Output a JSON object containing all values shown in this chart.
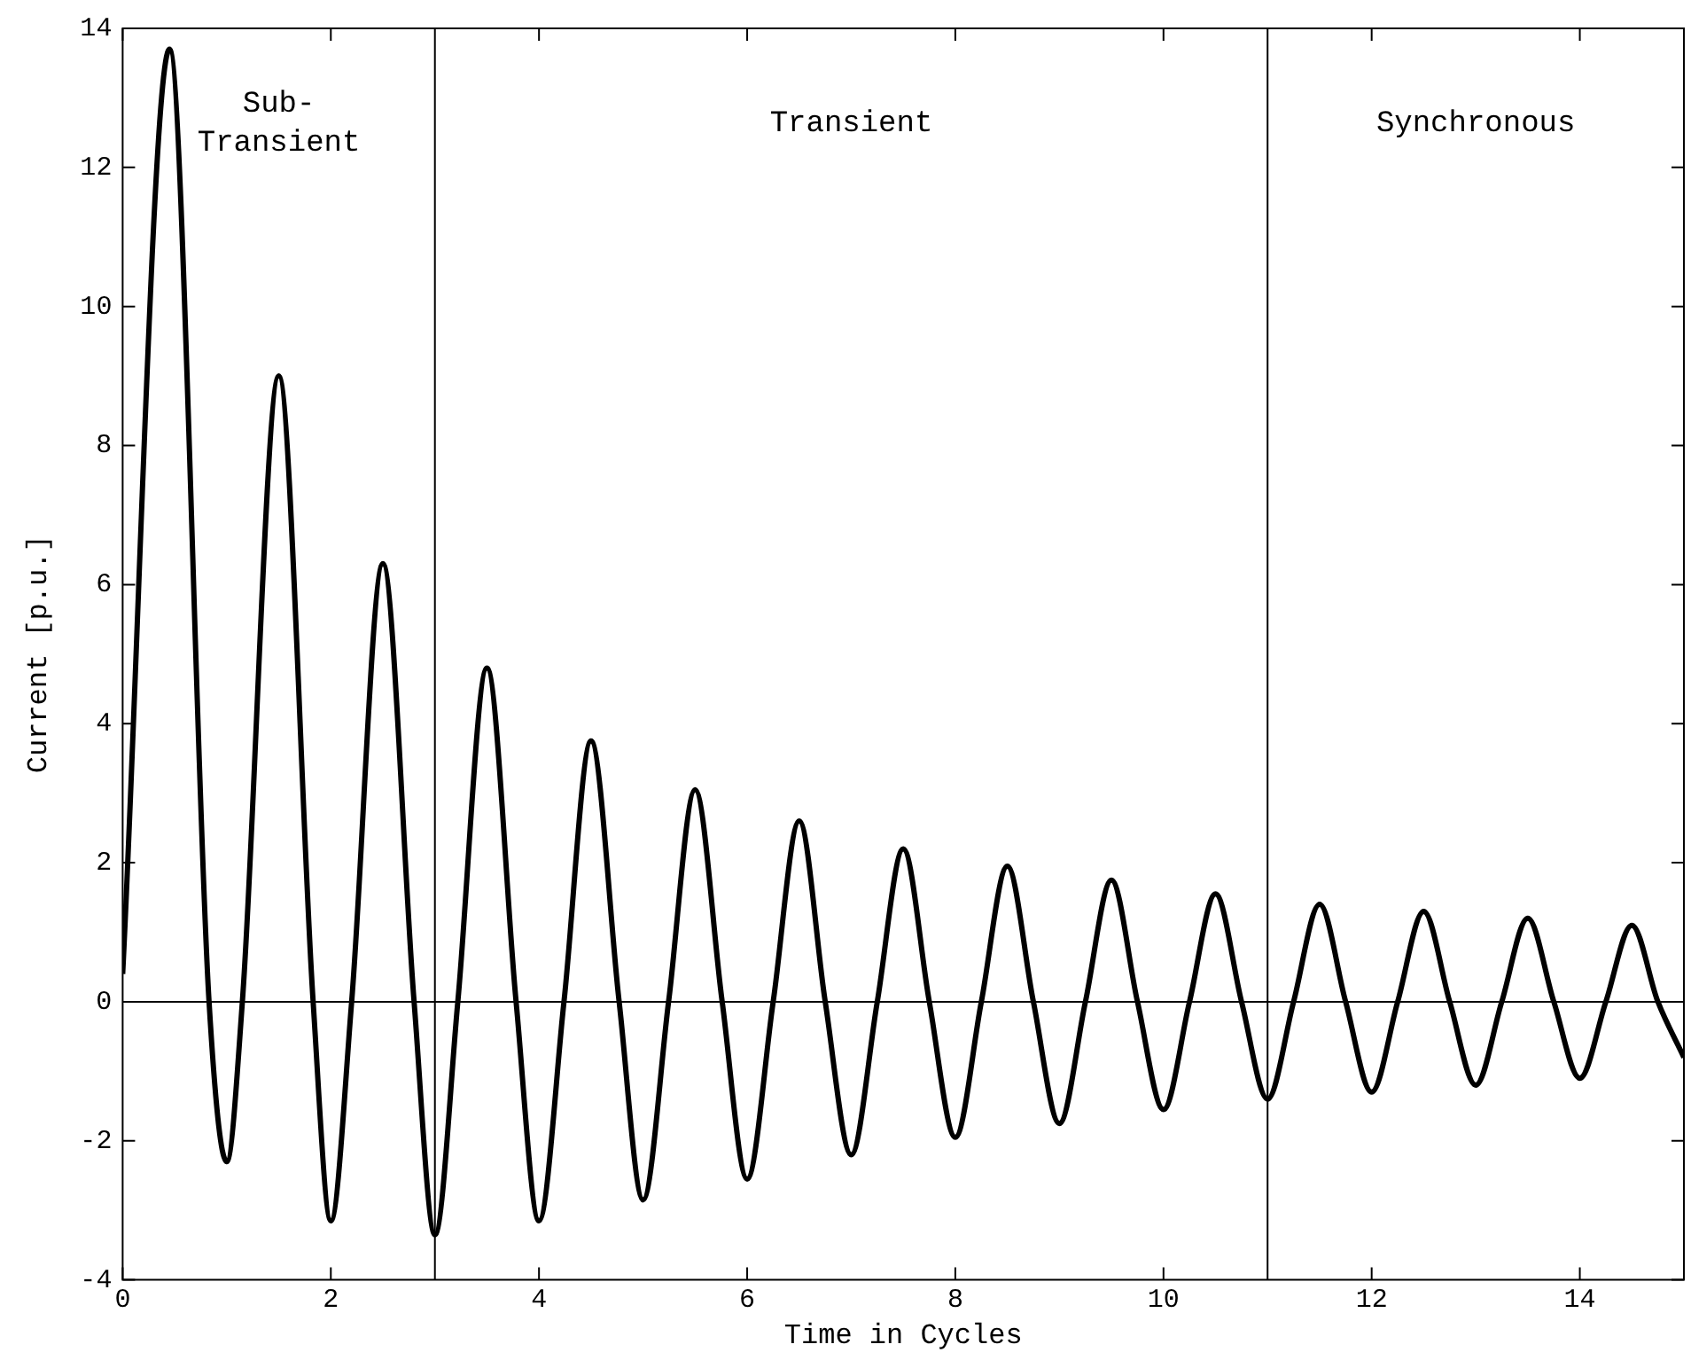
{
  "chart_data": {
    "type": "line",
    "xlabel": "Time in Cycles",
    "ylabel": "Current [p.u.]",
    "x": [
      0,
      0.45,
      0.83,
      1.0,
      1.15,
      1.5,
      1.83,
      2.0,
      2.2,
      2.5,
      2.8,
      3.0,
      3.22,
      3.5,
      3.78,
      4.0,
      4.24,
      4.5,
      4.77,
      5.0,
      5.245,
      5.5,
      5.76,
      6.0,
      6.25,
      6.5,
      6.75,
      7.0,
      7.25,
      7.5,
      7.75,
      8.0,
      8.25,
      8.5,
      8.75,
      9.0,
      9.25,
      9.5,
      9.75,
      10.0,
      10.25,
      10.5,
      10.75,
      11.0,
      11.25,
      11.5,
      11.75,
      12.0,
      12.25,
      12.5,
      12.75,
      13.0,
      13.25,
      13.5,
      13.75,
      14.0,
      14.25,
      14.5,
      14.75,
      15.0
    ],
    "series": [
      {
        "color": "#000000",
        "values": [
          0.4,
          13.7,
          0,
          -2.3,
          0,
          9.0,
          0,
          -3.15,
          0,
          6.3,
          0,
          -3.35,
          0,
          4.8,
          0,
          -3.15,
          0,
          3.75,
          0,
          -2.85,
          0,
          3.05,
          0,
          -2.55,
          0,
          2.6,
          0,
          -2.2,
          0,
          2.2,
          0,
          -1.95,
          0,
          1.95,
          0,
          -1.75,
          0,
          1.75,
          0,
          -1.55,
          0,
          1.55,
          0,
          -1.4,
          0,
          1.4,
          0,
          -1.3,
          0,
          1.3,
          0,
          -1.2,
          0,
          1.2,
          0,
          -1.1,
          0,
          1.1,
          0,
          -0.8
        ]
      }
    ],
    "xlim": [
      0,
      15
    ],
    "ylim": [
      -4,
      14
    ],
    "xticks": [
      0,
      2,
      4,
      6,
      8,
      10,
      12,
      14
    ],
    "yticks": [
      -4,
      -2,
      0,
      2,
      4,
      6,
      8,
      10,
      12,
      14
    ],
    "ref_lines": [
      {
        "axis": "x",
        "value": 3
      },
      {
        "axis": "x",
        "value": 11
      },
      {
        "axis": "y",
        "value": 0
      }
    ],
    "annotations": [
      "Sub-\nTransient",
      "Transient",
      "Synchronous"
    ],
    "grid": false,
    "legend": false,
    "marker": "none",
    "line_style": "solid"
  }
}
